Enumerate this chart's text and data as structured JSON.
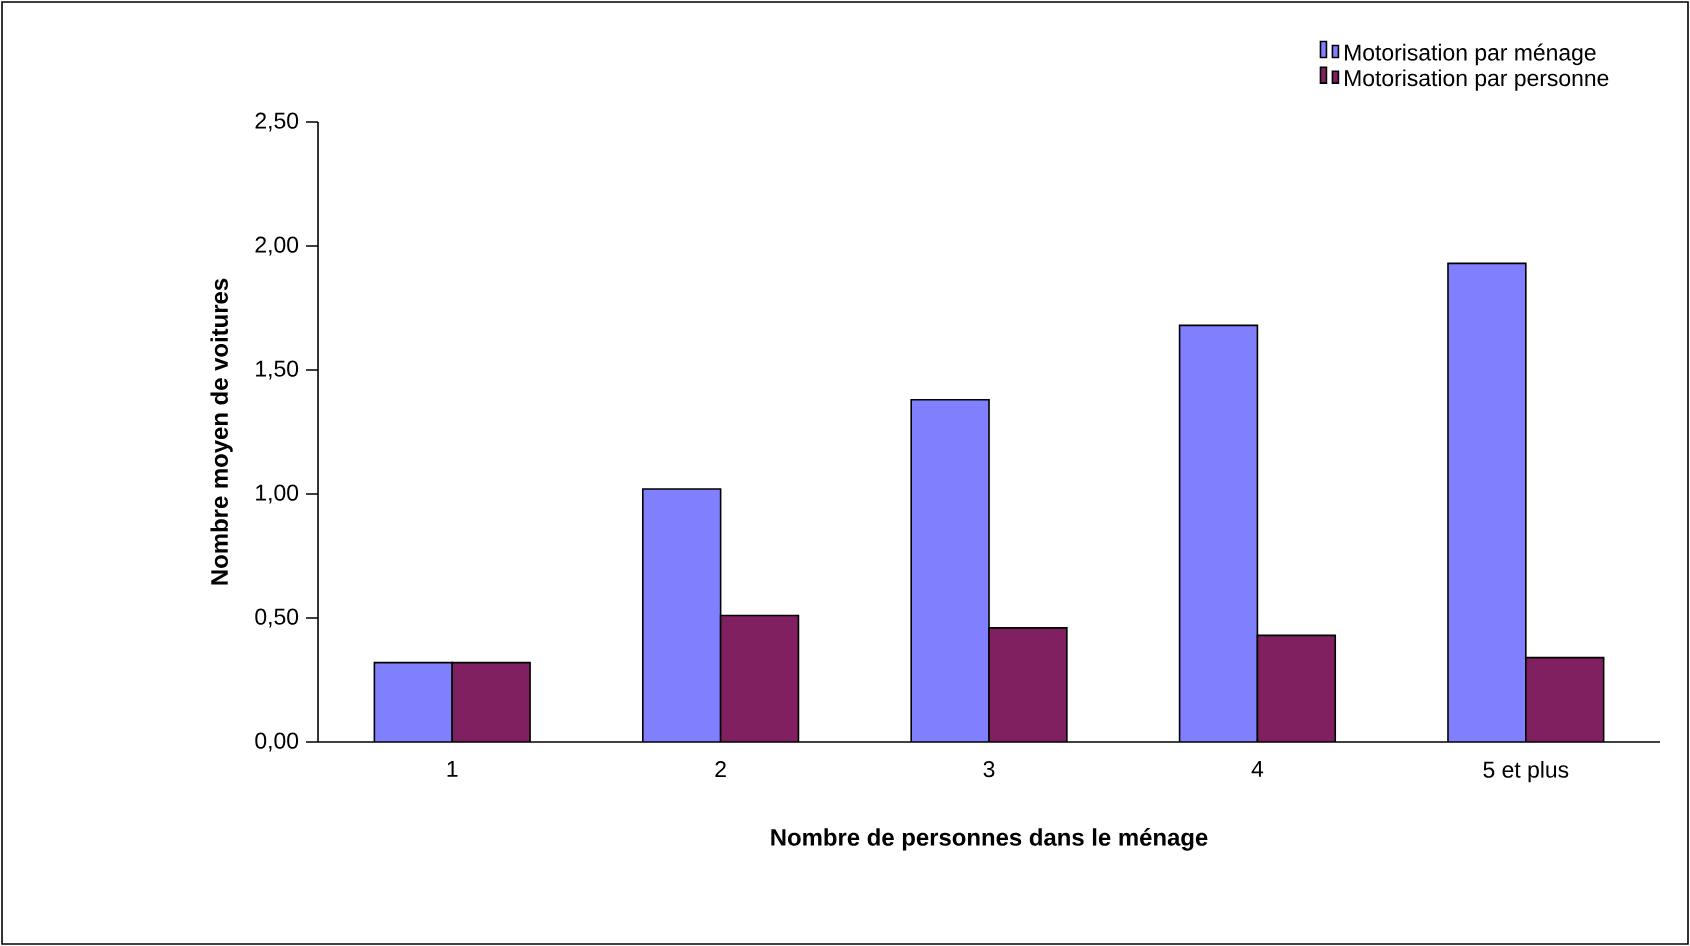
{
  "chart_data": {
    "type": "bar",
    "xlabel": "Nombre de personnes dans le ménage",
    "ylabel": "Nombre moyen de voitures",
    "categories": [
      "1",
      "2",
      "3",
      "4",
      "5 et plus"
    ],
    "series": [
      {
        "name": "Motorisation par ménage",
        "color": "#8080ff",
        "values": [
          0.32,
          1.02,
          1.38,
          1.68,
          1.93
        ]
      },
      {
        "name": "Motorisation par personne",
        "color": "#802060",
        "values": [
          0.32,
          0.51,
          0.46,
          0.43,
          0.34
        ]
      }
    ],
    "ylim": [
      0,
      2.5
    ],
    "yticks": [
      {
        "value": 0,
        "label": "0,00"
      },
      {
        "value": 0.5,
        "label": "0,50"
      },
      {
        "value": 1,
        "label": "1,00"
      },
      {
        "value": 1.5,
        "label": "1,50"
      },
      {
        "value": 2,
        "label": "2,00"
      },
      {
        "value": 2.5,
        "label": "2,50"
      }
    ],
    "grid": false,
    "legend": "top right"
  }
}
